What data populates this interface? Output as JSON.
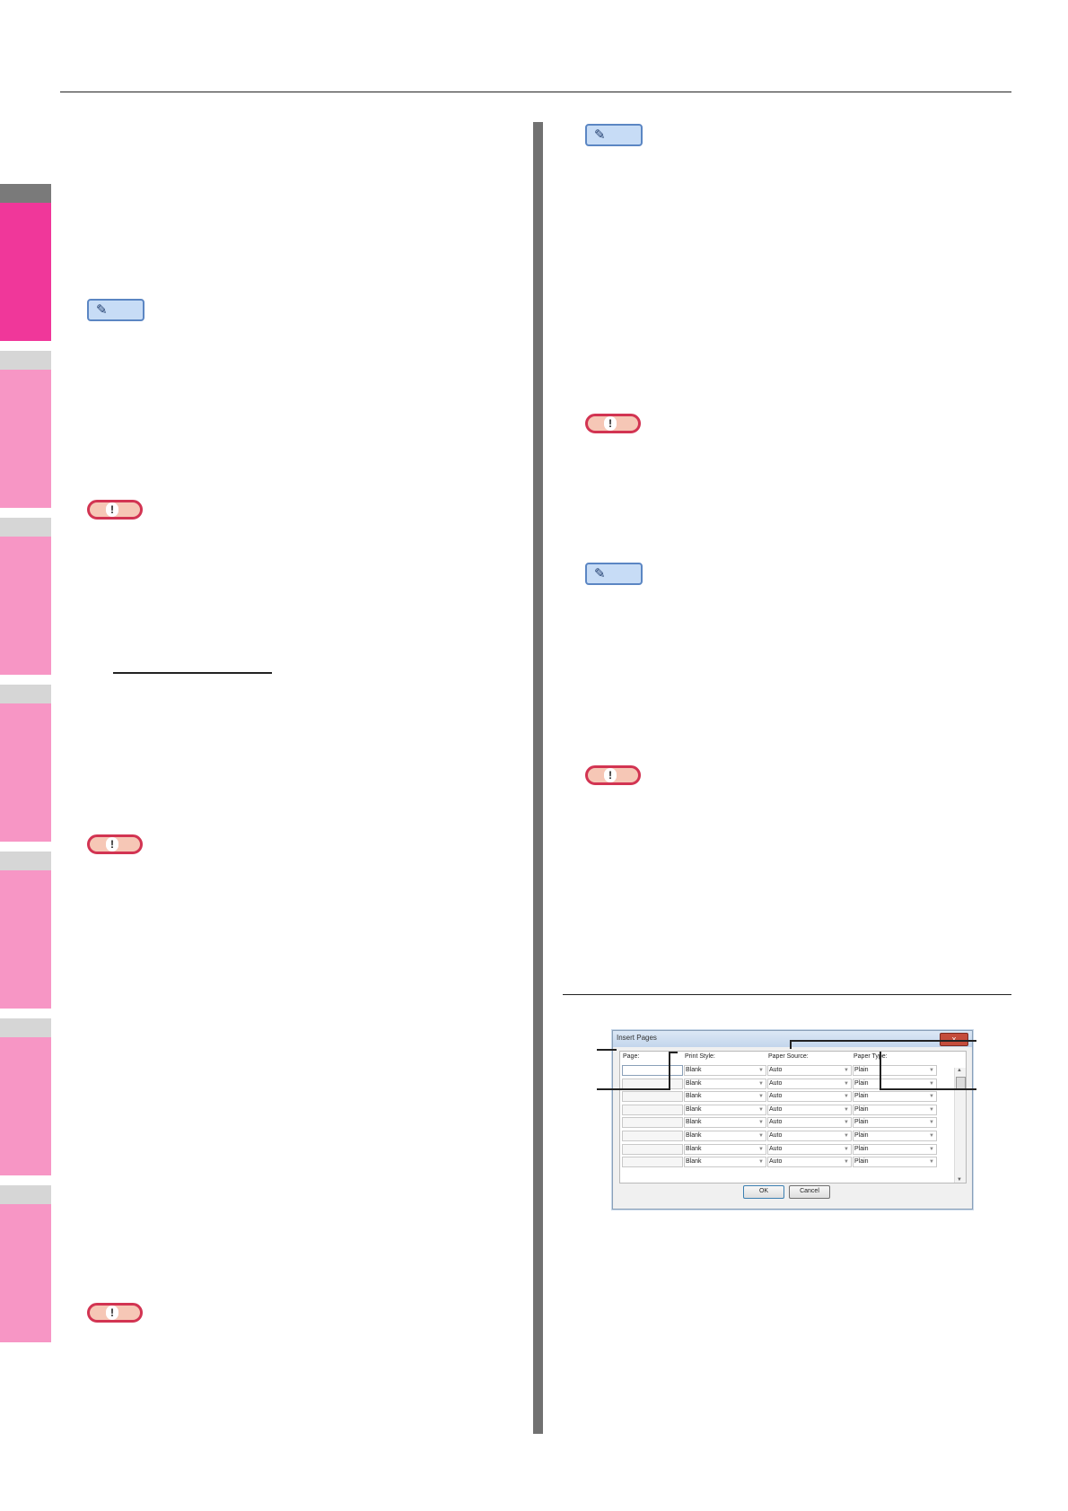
{
  "page": {
    "page_number": ""
  },
  "side_tabs": [
    {
      "id": "tab-1",
      "active": true
    },
    {
      "id": "tab-2",
      "active": false
    },
    {
      "id": "tab-3",
      "active": false
    },
    {
      "id": "tab-4",
      "active": false
    },
    {
      "id": "tab-5",
      "active": false
    },
    {
      "id": "tab-6",
      "active": false
    },
    {
      "id": "tab-7",
      "active": false
    }
  ],
  "badges": {
    "memo_icon": "pencil-icon",
    "note_icon": "exclamation-icon",
    "note_mark": "!"
  },
  "dialog": {
    "title": "Insert Pages",
    "close_label": "x",
    "headers": {
      "page": "Page:",
      "print_style": "Print Style:",
      "paper_source": "Paper Source:",
      "paper_type": "Paper Type:"
    },
    "rows": [
      {
        "print_style": "Blank",
        "paper_source": "Auto",
        "paper_type": "Plain"
      },
      {
        "print_style": "Blank",
        "paper_source": "Auto",
        "paper_type": "Plain"
      },
      {
        "print_style": "Blank",
        "paper_source": "Auto",
        "paper_type": "Plain"
      },
      {
        "print_style": "Blank",
        "paper_source": "Auto",
        "paper_type": "Plain"
      },
      {
        "print_style": "Blank",
        "paper_source": "Auto",
        "paper_type": "Plain"
      },
      {
        "print_style": "Blank",
        "paper_source": "Auto",
        "paper_type": "Plain"
      },
      {
        "print_style": "Blank",
        "paper_source": "Auto",
        "paper_type": "Plain"
      },
      {
        "print_style": "Blank",
        "paper_source": "Auto",
        "paper_type": "Plain"
      }
    ],
    "ok_label": "OK",
    "cancel_label": "Cancel"
  },
  "colors": {
    "tab_active": "#f0379a",
    "tab_inactive": "#f796c5",
    "memo_fill": "#c7dcf6",
    "note_border": "#d23452"
  }
}
